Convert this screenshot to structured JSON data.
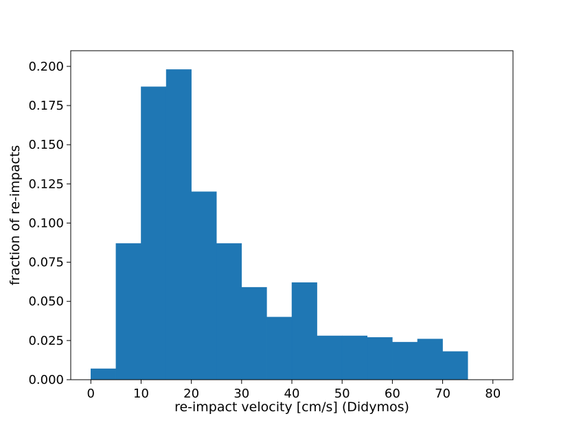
{
  "chart_data": {
    "type": "bar",
    "title": "",
    "xlabel": "re-impact velocity [cm/s] (Didymos)",
    "ylabel": "fraction of re-impacts",
    "bin_edges": [
      0,
      5,
      10,
      15,
      20,
      25,
      30,
      35,
      40,
      45,
      50,
      55,
      60,
      65,
      70,
      75
    ],
    "values": [
      0.007,
      0.087,
      0.187,
      0.198,
      0.12,
      0.087,
      0.059,
      0.04,
      0.062,
      0.028,
      0.028,
      0.027,
      0.024,
      0.026,
      0.018
    ],
    "xlim": [
      -4,
      84
    ],
    "ylim": [
      0,
      0.21
    ],
    "xticks": [
      0,
      10,
      20,
      30,
      40,
      50,
      60,
      70,
      80
    ],
    "xtick_labels": [
      "0",
      "10",
      "20",
      "30",
      "40",
      "50",
      "60",
      "70",
      "80"
    ],
    "yticks": [
      0,
      0.025,
      0.05,
      0.075,
      0.1,
      0.125,
      0.15,
      0.175,
      0.2
    ],
    "ytick_labels": [
      "0.000",
      "0.025",
      "0.050",
      "0.075",
      "0.100",
      "0.125",
      "0.150",
      "0.175",
      "0.200"
    ],
    "bar_color": "#1f77b4",
    "grid": false,
    "legend": "none"
  }
}
